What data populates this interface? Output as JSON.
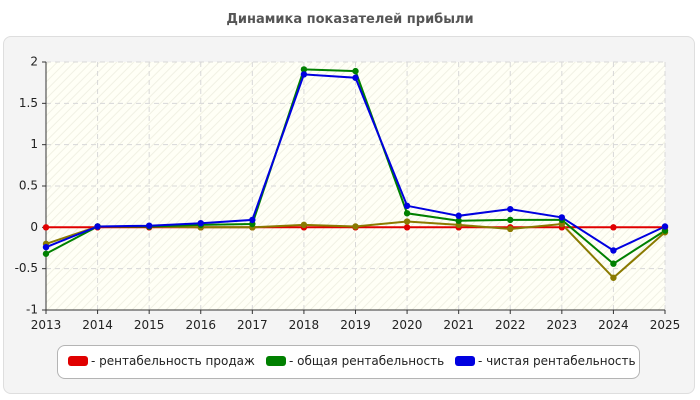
{
  "chart_data": {
    "type": "line",
    "title": "Динамика показателей прибыли",
    "categories": [
      "2013",
      "2014",
      "2015",
      "2016",
      "2017",
      "2018",
      "2019",
      "2020",
      "2021",
      "2022",
      "2023",
      "2024",
      "2025"
    ],
    "ylim": [
      -1,
      2
    ],
    "yticks": [
      "2",
      "1.5",
      "1",
      "0.5",
      "0",
      "-0.5",
      "-1"
    ],
    "ytick_values": [
      2,
      1.5,
      1,
      0.5,
      0,
      -0.5,
      -1
    ],
    "grid": true,
    "legend_position": "bottom",
    "series": [
      {
        "name": "- рентабельность продаж",
        "color": "#e00000",
        "values": [
          0,
          0,
          0,
          0,
          0,
          0,
          0,
          0,
          0,
          0,
          0,
          0,
          0
        ]
      },
      {
        "name": "- общая рентабельность",
        "color": "#008000",
        "values": [
          -0.32,
          0.01,
          0.01,
          0.03,
          0.04,
          1.91,
          1.89,
          0.17,
          0.08,
          0.09,
          0.09,
          -0.44,
          -0.04
        ]
      },
      {
        "name": "- чистая рентабельность",
        "color": "#0000e0",
        "values": [
          -0.24,
          0.01,
          0.02,
          0.05,
          0.09,
          1.85,
          1.81,
          0.26,
          0.14,
          0.22,
          0.12,
          -0.28,
          0.01
        ]
      },
      {
        "name": "",
        "color": "#8a7a00",
        "values": [
          -0.2,
          0.01,
          0.01,
          0,
          0,
          0.03,
          0.01,
          0.07,
          0.03,
          -0.02,
          0.04,
          -0.61,
          -0.06
        ]
      }
    ]
  }
}
